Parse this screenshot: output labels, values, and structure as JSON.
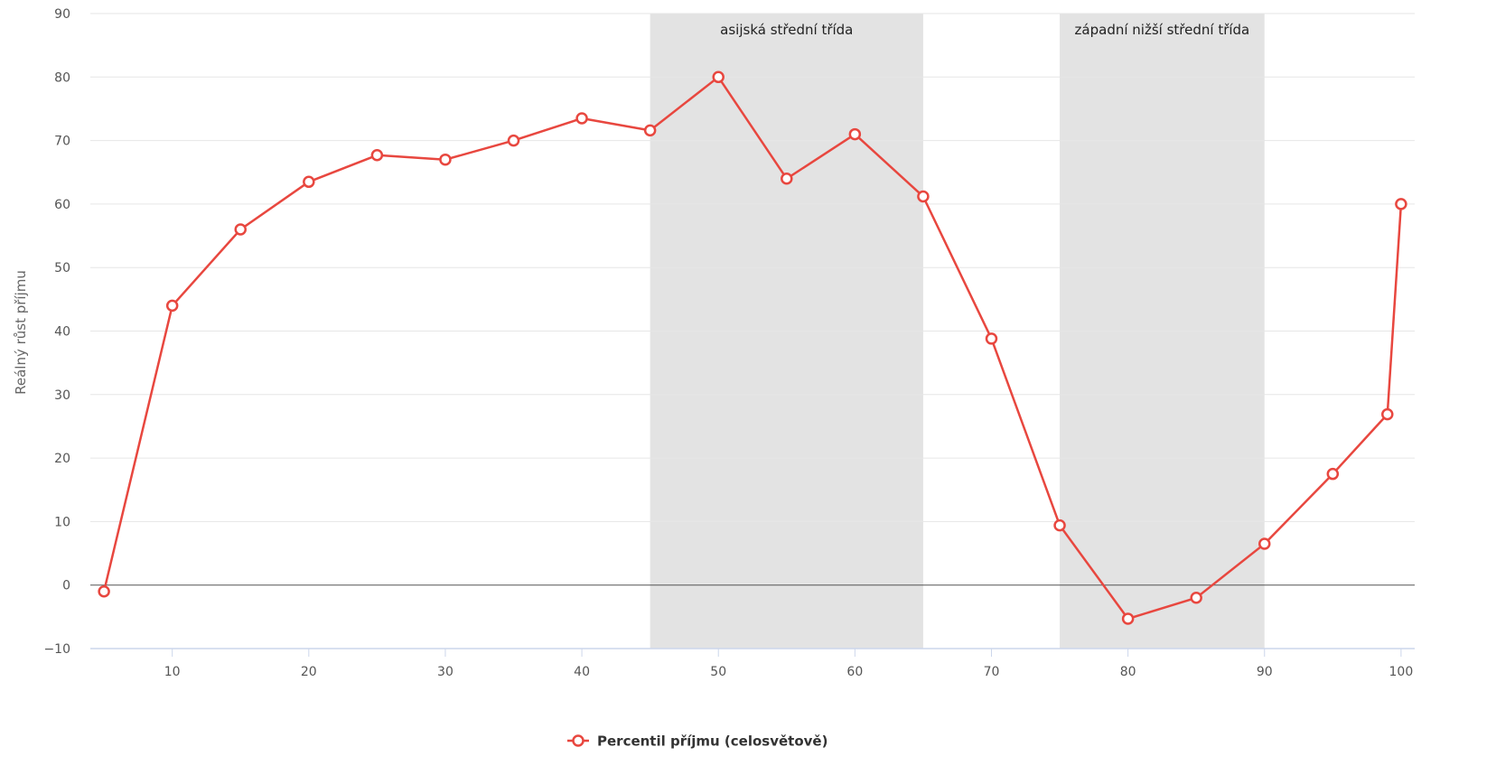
{
  "chart_data": {
    "type": "line",
    "title": "",
    "xlabel": "",
    "ylabel": "Reálný růst příjmu",
    "xlim": [
      4,
      101
    ],
    "ylim": [
      -10,
      90
    ],
    "x_ticks": [
      10,
      20,
      30,
      40,
      50,
      60,
      70,
      80,
      90,
      100
    ],
    "y_ticks": [
      -10,
      0,
      10,
      20,
      30,
      40,
      50,
      60,
      70,
      80,
      90
    ],
    "grid": true,
    "legend_position": "bottom-center",
    "colors": {
      "line": "#e8473f",
      "band": "#e3e3e3",
      "grid": "#e6e6e6",
      "zero_line": "#555555",
      "axis": "#ccd6eb"
    },
    "bands": [
      {
        "from": 45,
        "to": 65,
        "label": "asijská střední třída"
      },
      {
        "from": 75,
        "to": 90,
        "label": "západní nižší střední třída"
      }
    ],
    "series": [
      {
        "name": "Percentil příjmu (celosvětově)",
        "x": [
          5,
          10,
          15,
          20,
          25,
          30,
          35,
          40,
          45,
          50,
          55,
          60,
          65,
          70,
          75,
          80,
          85,
          90,
          95,
          99,
          100
        ],
        "y": [
          -1,
          44,
          56,
          63.5,
          67.7,
          67,
          70,
          73.5,
          71.6,
          80,
          64,
          71,
          61.2,
          38.8,
          9.4,
          -5.3,
          -2,
          6.5,
          17.5,
          26.9,
          60
        ]
      }
    ]
  }
}
